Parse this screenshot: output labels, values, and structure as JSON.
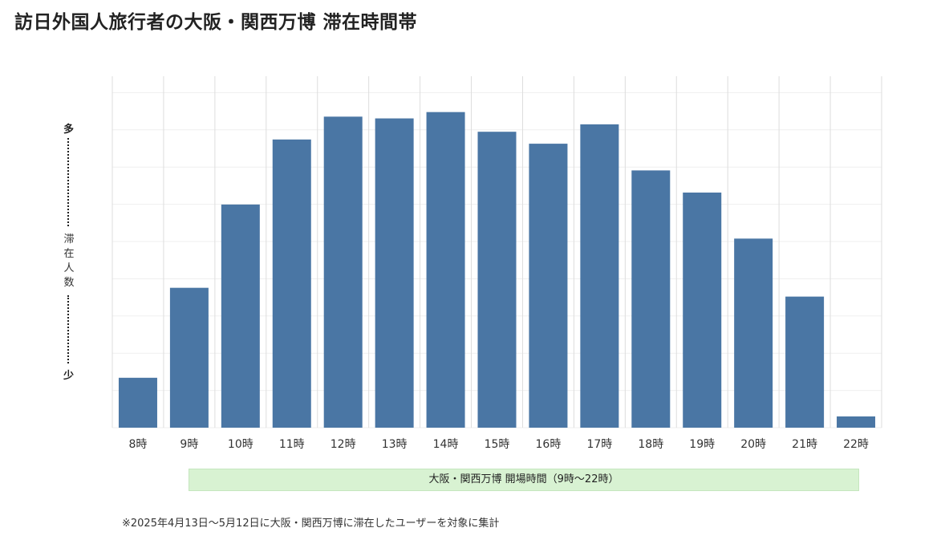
{
  "title": "訪日外国人旅行者の大阪・関西万博 滞在時間帯",
  "y_axis": {
    "top_label": "多",
    "middle_label": "滞在人数",
    "bottom_label": "少"
  },
  "open_hours_band": "大阪・関西万博 開場時間（9時〜22時）",
  "footnote": "※2025年4月13日〜5月12日に大阪・関西万博に滞在したユーザーを対象に集計",
  "chart_data": {
    "type": "bar",
    "title": "訪日外国人旅行者の大阪・関西万博 滞在時間帯",
    "xlabel": "",
    "ylabel": "滞在人数",
    "categories": [
      "8時",
      "9時",
      "10時",
      "11時",
      "12時",
      "13時",
      "14時",
      "15時",
      "16時",
      "17時",
      "18時",
      "19時",
      "20時",
      "21時",
      "22時"
    ],
    "values": [
      14.2,
      39.8,
      63.5,
      82.0,
      88.5,
      88.0,
      89.8,
      84.2,
      80.8,
      86.3,
      73.2,
      66.9,
      53.8,
      37.3,
      3.2
    ],
    "ylim": [
      0,
      100
    ],
    "grid": true,
    "bar_color": "#4a76a4"
  }
}
